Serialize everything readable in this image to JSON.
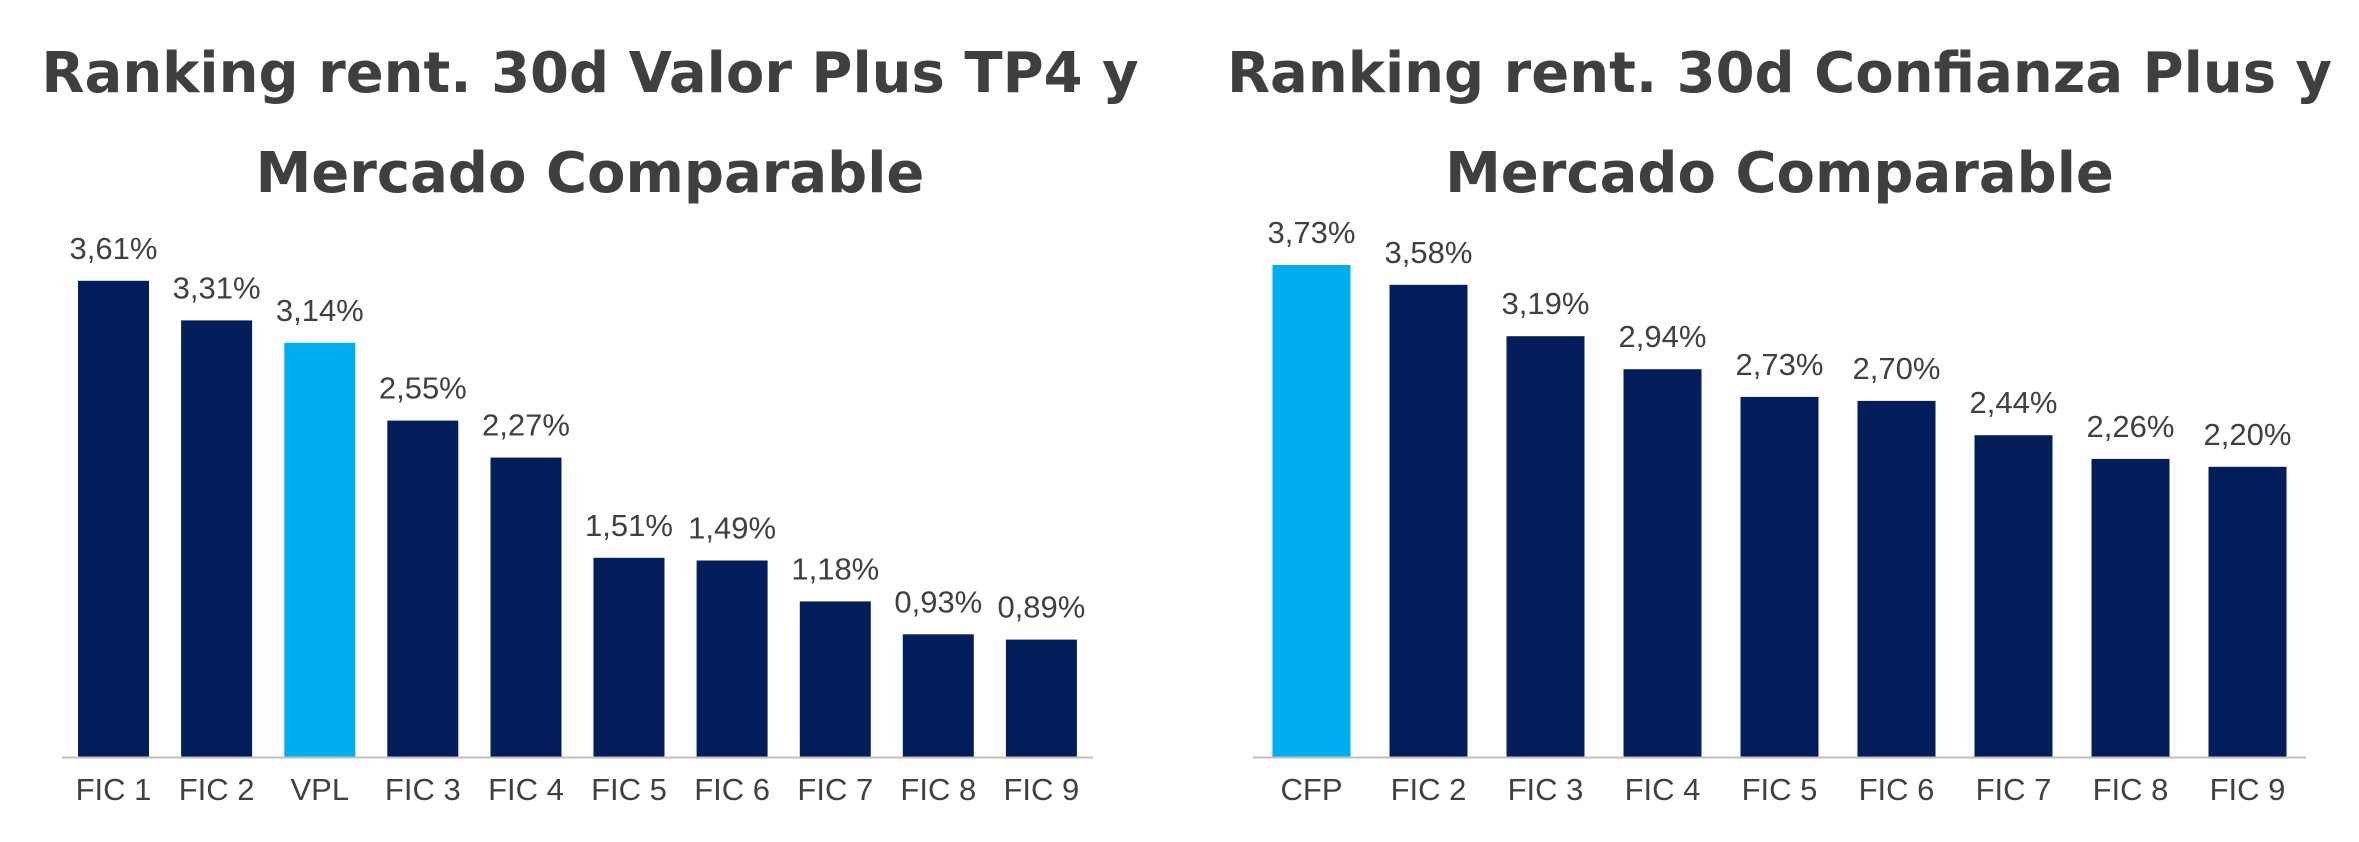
{
  "chart_data": [
    {
      "type": "bar",
      "title": "Ranking rent. 30d Valor Plus TP4 y Mercado Comparable",
      "categories": [
        "FIC 1",
        "FIC 2",
        "VPL",
        "FIC 3",
        "FIC 4",
        "FIC 5",
        "FIC 6",
        "FIC 7",
        "FIC 8",
        "FIC 9"
      ],
      "values": [
        3.61,
        3.31,
        3.14,
        2.55,
        2.27,
        1.51,
        1.49,
        1.18,
        0.93,
        0.89
      ],
      "value_labels": [
        "3,61%",
        "3,31%",
        "3,14%",
        "2,55%",
        "2,27%",
        "1,51%",
        "1,49%",
        "1,18%",
        "0,93%",
        "0,89%"
      ],
      "highlight_category": "VPL",
      "xlabel": "",
      "ylabel": "",
      "ylim": [
        0,
        3.9
      ],
      "grid": false,
      "legend": "none"
    },
    {
      "type": "bar",
      "title": "Ranking rent. 30d Confianza Plus y Mercado Comparable",
      "categories": [
        "CFP",
        "FIC 2",
        "FIC 3",
        "FIC 4",
        "FIC 5",
        "FIC 6",
        "FIC 7",
        "FIC 8",
        "FIC 9"
      ],
      "values": [
        3.73,
        3.58,
        3.19,
        2.94,
        2.73,
        2.7,
        2.44,
        2.26,
        2.2
      ],
      "value_labels": [
        "3,73%",
        "3,58%",
        "3,19%",
        "2,94%",
        "2,73%",
        "2,70%",
        "2,44%",
        "2,26%",
        "2,20%"
      ],
      "highlight_category": "CFP",
      "xlabel": "",
      "ylabel": "",
      "ylim": [
        0,
        3.9
      ],
      "grid": false,
      "legend": "none"
    }
  ],
  "colors": {
    "bar": "#041e5c",
    "highlight": "#00aeef",
    "axis": "#bfbfbf",
    "title": "#3f3f3f",
    "label": "#404040"
  }
}
